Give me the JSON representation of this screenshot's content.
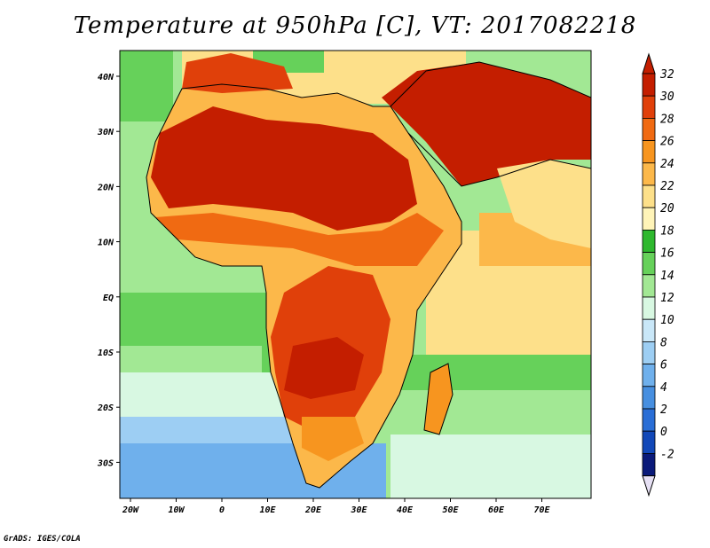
{
  "title": "Temperature at 950hPa [C], VT: 2017082218",
  "footer": "GrADS: IGES/COLA",
  "map": {
    "lon_range": [
      -22,
      80
    ],
    "lat_range": [
      -36,
      45
    ],
    "x_ticks": [
      "20W",
      "10W",
      "0",
      "10E",
      "20E",
      "30E",
      "40E",
      "50E",
      "60E",
      "70E"
    ],
    "y_ticks": [
      "40N",
      "30N",
      "20N",
      "10N",
      "EQ",
      "10S",
      "20S",
      "30S"
    ]
  },
  "colorbar": {
    "labels": [
      "32",
      "30",
      "28",
      "26",
      "24",
      "22",
      "20",
      "18",
      "16",
      "14",
      "12",
      "10",
      "8",
      "6",
      "4",
      "2",
      "0",
      "-2"
    ],
    "colors": [
      "#c41e00",
      "#e0400a",
      "#f06a12",
      "#f7951f",
      "#fcb84a",
      "#fde08a",
      "#fff4b8",
      "#2eb82e",
      "#66d15a",
      "#a2e894",
      "#d8f8e2",
      "#c9e7f8",
      "#9dcef3",
      "#6fb0ec",
      "#478fe0",
      "#2a6ed6",
      "#1248b8",
      "#0a1a7a"
    ]
  }
}
